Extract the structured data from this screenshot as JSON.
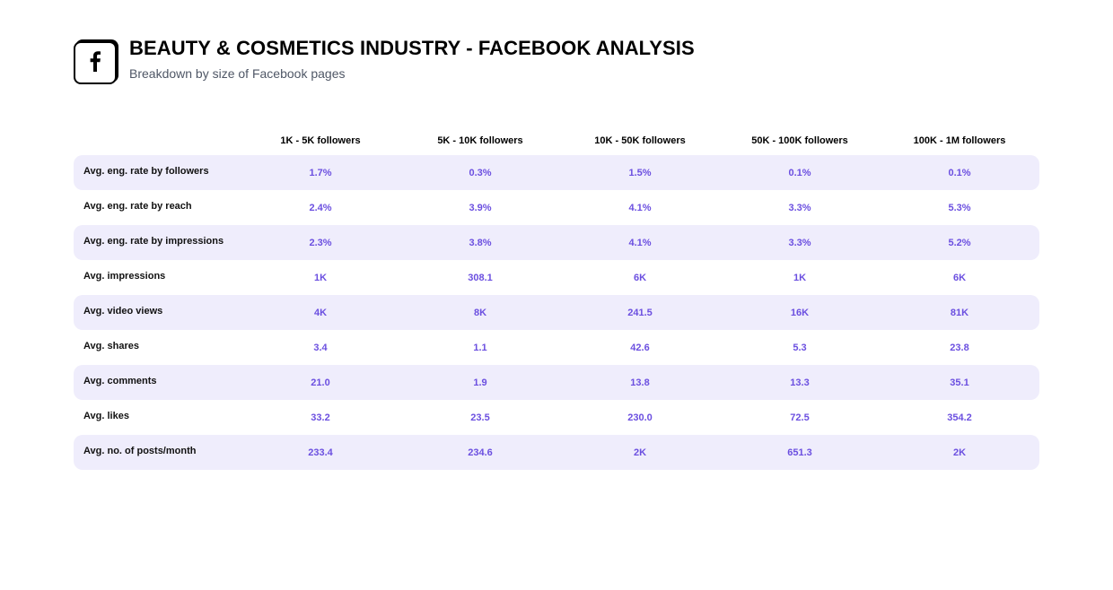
{
  "header": {
    "title": "BEAUTY & COSMETICS INDUSTRY - FACEBOOK ANALYSIS",
    "subtitle": "Breakdown by size of Facebook pages",
    "logo_icon": "facebook-icon"
  },
  "table": {
    "columns": [
      "1K - 5K followers",
      "5K - 10K followers",
      "10K - 50K followers",
      "50K - 100K followers",
      "100K - 1M followers"
    ],
    "rows": [
      {
        "label": "Avg. eng. rate by followers",
        "values": [
          "1.7%",
          "0.3%",
          "1.5%",
          "0.1%",
          "0.1%"
        ]
      },
      {
        "label": "Avg. eng. rate by reach",
        "values": [
          "2.4%",
          "3.9%",
          "4.1%",
          "3.3%",
          "5.3%"
        ]
      },
      {
        "label": "Avg. eng. rate by impressions",
        "values": [
          "2.3%",
          "3.8%",
          "4.1%",
          "3.3%",
          "5.2%"
        ]
      },
      {
        "label": "Avg. impressions",
        "values": [
          "1K",
          "308.1",
          "6K",
          "1K",
          "6K"
        ]
      },
      {
        "label": "Avg. video views",
        "values": [
          "4K",
          "8K",
          "241.5",
          "16K",
          "81K"
        ]
      },
      {
        "label": "Avg. shares",
        "values": [
          "3.4",
          "1.1",
          "42.6",
          "5.3",
          "23.8"
        ]
      },
      {
        "label": "Avg. comments",
        "values": [
          "21.0",
          "1.9",
          "13.8",
          "13.3",
          "35.1"
        ]
      },
      {
        "label": "Avg. likes",
        "values": [
          "33.2",
          "23.5",
          "230.0",
          "72.5",
          "354.2"
        ]
      },
      {
        "label": "Avg. no. of posts/month",
        "values": [
          "233.4",
          "234.6",
          "2K",
          "651.3",
          "2K"
        ]
      }
    ]
  },
  "colors": {
    "accent": "#6b4fe0",
    "row_shade": "#efedfc",
    "subtitle": "#4f5766"
  }
}
